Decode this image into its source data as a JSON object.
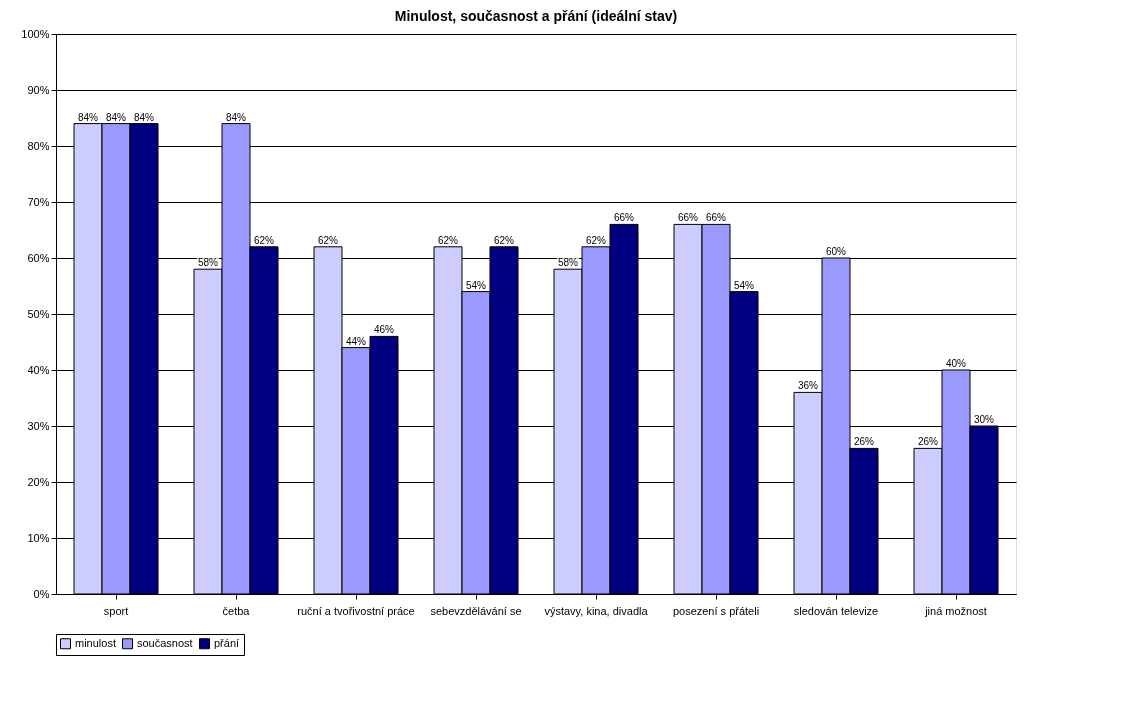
{
  "chart_data": {
    "type": "bar",
    "title": "Minulost, současnost a přání (ideální stav)",
    "categories": [
      "sport",
      "četba",
      "ruční a tvořivostní práce",
      "sebevzdělávání se",
      "výstavy, kina, divadla",
      "posezení s přáteli",
      "sledován televize",
      "jiná možnost"
    ],
    "series": [
      {
        "name": "minulost",
        "color": "#ccccff",
        "values": [
          84,
          58,
          62,
          62,
          58,
          66,
          36,
          26
        ],
        "value_labels": [
          "84%",
          "58%",
          "62%",
          "62%",
          "58%",
          "66%",
          "36%",
          "26%"
        ]
      },
      {
        "name": "současnost",
        "color": "#9999ff",
        "values": [
          84,
          84,
          44,
          54,
          62,
          66,
          60,
          40
        ],
        "value_labels": [
          "84%",
          "84%",
          "44%",
          "54%",
          "62%",
          "66%",
          "60%",
          "40%"
        ]
      },
      {
        "name": "přání",
        "color": "#000080",
        "values": [
          84,
          62,
          46,
          62,
          66,
          54,
          26,
          30
        ],
        "value_labels": [
          "84%",
          "62%",
          "46%",
          "62%",
          "66%",
          "54%",
          "26%",
          "30%"
        ]
      }
    ],
    "ylim": [
      0,
      100
    ],
    "yticks": [
      {
        "value": 0,
        "label": "0%"
      },
      {
        "value": 10,
        "label": "10%"
      },
      {
        "value": 20,
        "label": "20%"
      },
      {
        "value": 30,
        "label": "30%"
      },
      {
        "value": 40,
        "label": "40%"
      },
      {
        "value": 50,
        "label": "50%"
      },
      {
        "value": 60,
        "label": "60%"
      },
      {
        "value": 70,
        "label": "70%"
      },
      {
        "value": 80,
        "label": "80%"
      },
      {
        "value": 90,
        "label": "90%"
      },
      {
        "value": 100,
        "label": "100%"
      }
    ],
    "grid": "y",
    "legend": "bottom"
  }
}
